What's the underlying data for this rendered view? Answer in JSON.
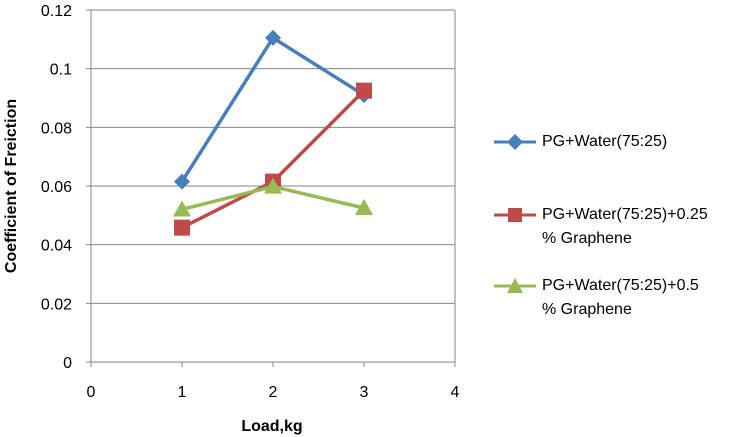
{
  "chart_data": {
    "type": "line",
    "title": "",
    "xlabel": "Load,kg",
    "ylabel": "Coefficient of Freiction",
    "xlim": [
      0,
      4
    ],
    "ylim": [
      0,
      0.12
    ],
    "xticks": [
      "0",
      "1",
      "2",
      "3",
      "4"
    ],
    "yticks": [
      "0",
      "0.02",
      "0.04",
      "0.06",
      "0.08",
      "0.1",
      "0.12"
    ],
    "grid": "horizontal",
    "legend_position": "right",
    "series": [
      {
        "name": "PG+Water(75:25)",
        "marker": "diamond",
        "color": "#4a7ebb",
        "x": [
          1,
          2,
          3
        ],
        "values": [
          0.0615,
          0.1105,
          0.091
        ]
      },
      {
        "name": "PG+Water(75:25)+0.25\n% Graphene",
        "marker": "square",
        "color": "#be4b48",
        "x": [
          1,
          2,
          3
        ],
        "values": [
          0.0458,
          0.0615,
          0.0925
        ]
      },
      {
        "name": "PG+Water(75:25)+0.5\n% Graphene",
        "marker": "triangle",
        "color": "#98b954",
        "x": [
          1,
          2,
          3
        ],
        "values": [
          0.052,
          0.0598,
          0.0525
        ]
      }
    ]
  }
}
